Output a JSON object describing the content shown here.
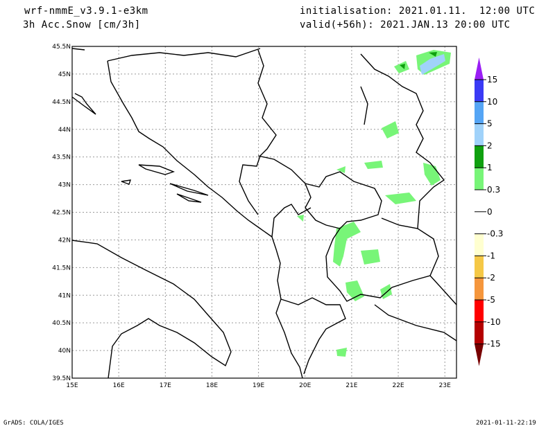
{
  "header": {
    "model": "wrf-nmmE_v3.9.1-e3km",
    "field": "3h Acc.Snow [cm/3h]",
    "init": "initialisation: 2021.01.11.  12:00 UTC",
    "valid": "valid(+56h): 2021.JAN.13 20:00 UTC"
  },
  "map": {
    "lon_labels": [
      "15E",
      "16E",
      "17E",
      "18E",
      "19E",
      "20E",
      "21E",
      "22E",
      "23E"
    ],
    "lat_labels": [
      "45.5N",
      "45N",
      "44.5N",
      "44N",
      "43.5N",
      "43N",
      "42.5N",
      "42N",
      "41.5N",
      "41N",
      "40.5N",
      "40N",
      "39.5N"
    ],
    "lon_range": [
      15,
      23.25
    ],
    "lat_range": [
      39.5,
      45.5
    ]
  },
  "colorbar": {
    "labels": [
      "15",
      "10",
      "5",
      "2",
      "1",
      "0.3",
      "0",
      "-0.3",
      "-1",
      "-2",
      "-5",
      "-10",
      "-15"
    ],
    "colors": [
      "#9a1ef5",
      "#3a3af5",
      "#55a5f5",
      "#a0d2fa",
      "#0fa00f",
      "#78f578",
      "#ffffff",
      "#ffffff",
      "#ffffd0",
      "#f5c846",
      "#f5963c",
      "#ff0000",
      "#b40000",
      "#780000"
    ]
  },
  "footer": {
    "left": "GrADS: COLA/IGES",
    "right": "2021-01-11-22:19"
  }
}
